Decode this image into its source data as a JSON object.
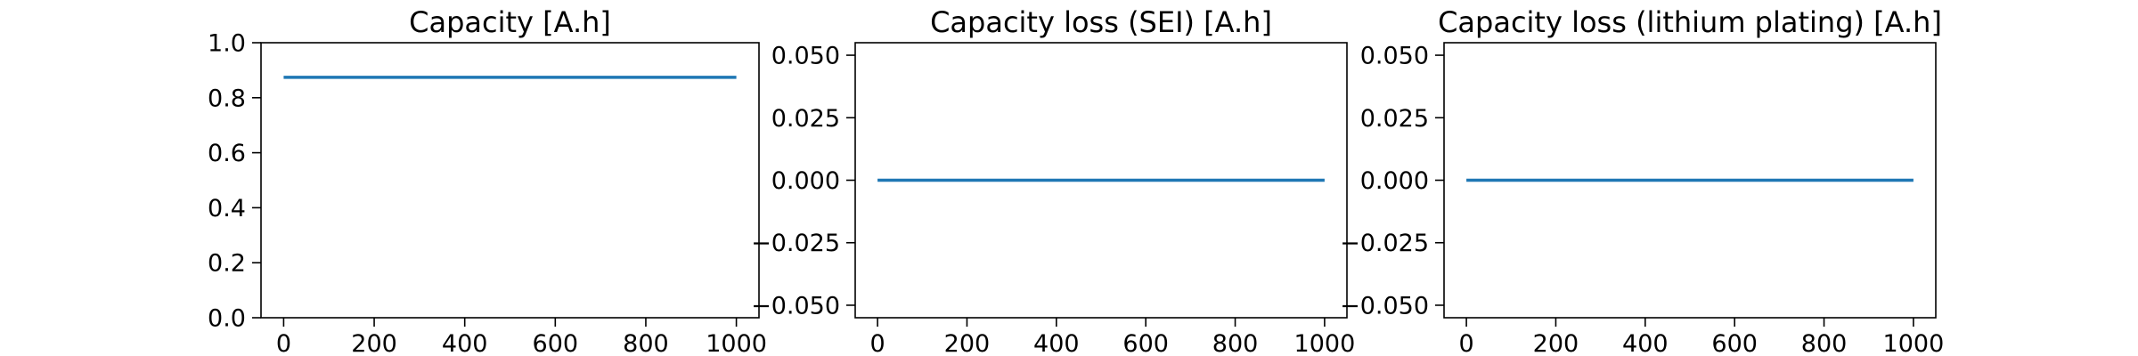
{
  "colors": {
    "series": "#1f77b4",
    "axes": "#000000",
    "background": "#ffffff"
  },
  "chart_data": [
    {
      "type": "line",
      "title": "Capacity [A.h]",
      "xlabel": "",
      "ylabel": "",
      "xlim": [
        -50,
        1050
      ],
      "ylim": [
        0.0,
        1.0
      ],
      "xticks": [
        0,
        200,
        400,
        600,
        800,
        1000
      ],
      "xtick_labels": [
        "0",
        "200",
        "400",
        "600",
        "800",
        "1000"
      ],
      "yticks": [
        0.0,
        0.2,
        0.4,
        0.6,
        0.8,
        1.0
      ],
      "ytick_labels": [
        "0.0",
        "0.2",
        "0.4",
        "0.6",
        "0.8",
        "1.0"
      ],
      "grid": false,
      "series": [
        {
          "x": [
            0,
            1000
          ],
          "y": [
            0.874,
            0.874
          ]
        }
      ]
    },
    {
      "type": "line",
      "title": "Capacity loss (SEI) [A.h]",
      "xlabel": "",
      "ylabel": "",
      "xlim": [
        -50,
        1050
      ],
      "ylim": [
        -0.055,
        0.055
      ],
      "xticks": [
        0,
        200,
        400,
        600,
        800,
        1000
      ],
      "xtick_labels": [
        "0",
        "200",
        "400",
        "600",
        "800",
        "1000"
      ],
      "yticks": [
        -0.05,
        -0.025,
        0.0,
        0.025,
        0.05
      ],
      "ytick_labels": [
        "−0.050",
        "−0.025",
        "0.000",
        "0.025",
        "0.050"
      ],
      "grid": false,
      "series": [
        {
          "x": [
            0,
            1000
          ],
          "y": [
            0.0,
            0.0
          ]
        }
      ]
    },
    {
      "type": "line",
      "title": "Capacity loss (lithium plating) [A.h]",
      "xlabel": "",
      "ylabel": "",
      "xlim": [
        -50,
        1050
      ],
      "ylim": [
        -0.055,
        0.055
      ],
      "xticks": [
        0,
        200,
        400,
        600,
        800,
        1000
      ],
      "xtick_labels": [
        "0",
        "200",
        "400",
        "600",
        "800",
        "1000"
      ],
      "yticks": [
        -0.05,
        -0.025,
        0.0,
        0.025,
        0.05
      ],
      "ytick_labels": [
        "−0.050",
        "−0.025",
        "0.000",
        "0.025",
        "0.050"
      ],
      "grid": false,
      "series": [
        {
          "x": [
            0,
            1000
          ],
          "y": [
            0.0,
            0.0
          ]
        }
      ]
    }
  ]
}
